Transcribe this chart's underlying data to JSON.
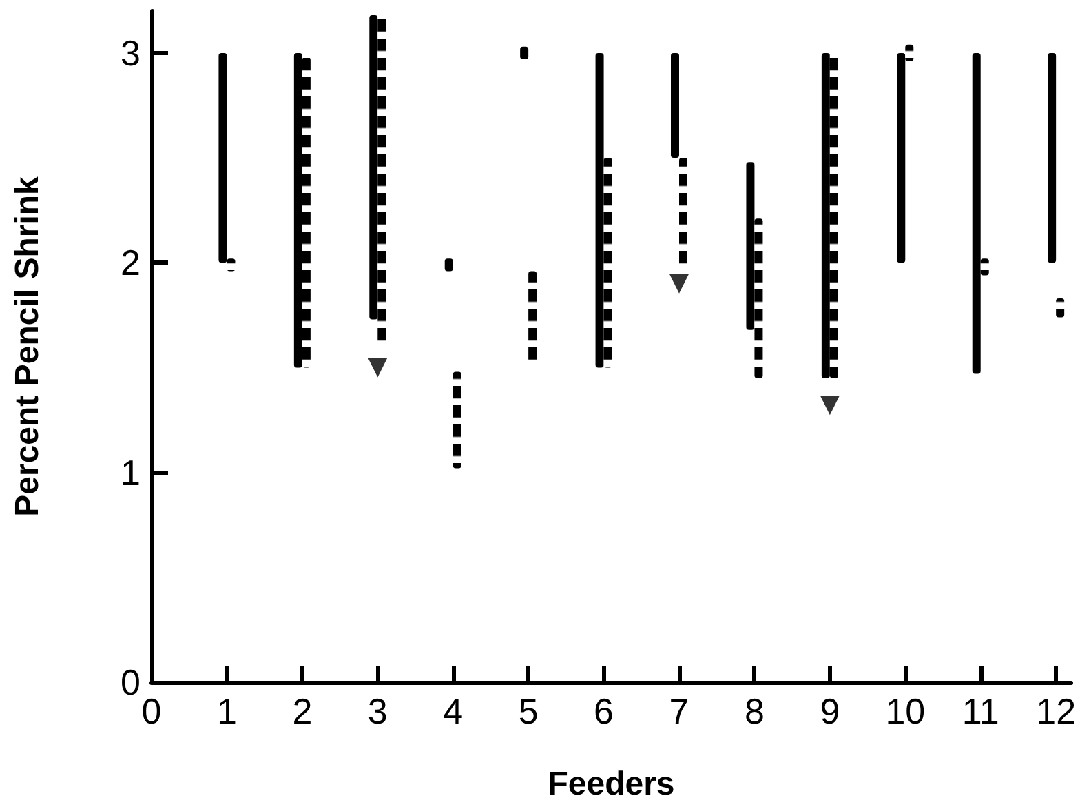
{
  "chart_data": {
    "type": "bar",
    "xlabel": "Feeders",
    "ylabel": "Percent Pencil Shrink",
    "x": [
      1,
      2,
      3,
      4,
      5,
      6,
      7,
      8,
      9,
      10,
      11,
      12
    ],
    "xlim": [
      0,
      12.2
    ],
    "xticks": [
      0,
      1,
      2,
      3,
      4,
      5,
      6,
      7,
      8,
      9,
      10,
      11,
      12
    ],
    "ylim": [
      0,
      3.2
    ],
    "yticks": [
      0,
      1,
      2,
      3
    ],
    "grid": false,
    "legend": false,
    "series": [
      {
        "line_style": "solid",
        "color": "#000000",
        "base": [
          2.0,
          1.5,
          1.73,
          1.96,
          2.97,
          1.5,
          2.5,
          1.68,
          1.45,
          2.0,
          1.47,
          2.0
        ],
        "values": [
          1.0,
          1.5,
          1.45,
          0.06,
          0.06,
          1.5,
          0.5,
          0.8,
          1.55,
          1.0,
          1.53,
          1.0
        ]
      },
      {
        "line_style": "dashed",
        "color": "#000000",
        "base": [
          1.96,
          1.5,
          1.6,
          1.02,
          1.52,
          1.5,
          1.98,
          1.45,
          1.45,
          2.96,
          1.94,
          1.74
        ],
        "values": [
          0.06,
          1.48,
          1.58,
          0.46,
          0.44,
          1.0,
          0.52,
          0.76,
          1.55,
          0.08,
          0.08,
          0.09
        ]
      },
      {
        "type": "scatter",
        "marker": "triangle",
        "color": "#000000",
        "x": [
          3,
          7,
          9
        ],
        "values": [
          1.5,
          1.9,
          1.32
        ]
      }
    ]
  }
}
